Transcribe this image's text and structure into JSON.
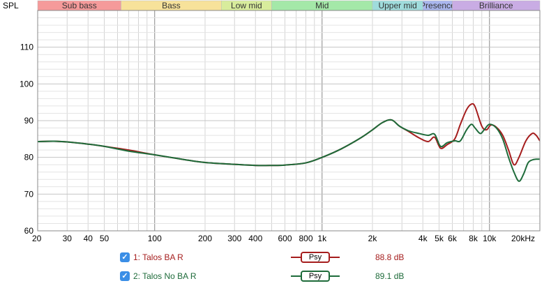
{
  "chart_data": {
    "type": "line",
    "ylabel": "SPL",
    "xscale": "log",
    "xlim": [
      20,
      20000
    ],
    "ylim": [
      60,
      120
    ],
    "yticks": [
      60,
      70,
      80,
      90,
      100,
      110
    ],
    "xtick_labels": [
      {
        "v": 20,
        "t": "20"
      },
      {
        "v": 30,
        "t": "30"
      },
      {
        "v": 40,
        "t": "40"
      },
      {
        "v": 50,
        "t": "50"
      },
      {
        "v": 100,
        "t": "100"
      },
      {
        "v": 200,
        "t": "200"
      },
      {
        "v": 300,
        "t": "300"
      },
      {
        "v": 400,
        "t": "400"
      },
      {
        "v": 600,
        "t": "600"
      },
      {
        "v": 800,
        "t": "800"
      },
      {
        "v": 1000,
        "t": "1k"
      },
      {
        "v": 2000,
        "t": "2k"
      },
      {
        "v": 4000,
        "t": "4k"
      },
      {
        "v": 5000,
        "t": "5k"
      },
      {
        "v": 6000,
        "t": "6k"
      },
      {
        "v": 8000,
        "t": "8k"
      },
      {
        "v": 10000,
        "t": "10k"
      },
      {
        "v": 20000,
        "t": "20kHz"
      }
    ],
    "bands": [
      {
        "label": "Sub bass",
        "from": 20,
        "to": 63,
        "color": "#f59a9a"
      },
      {
        "label": "Bass",
        "from": 63,
        "to": 250,
        "color": "#f7e29a"
      },
      {
        "label": "Low mid",
        "from": 250,
        "to": 500,
        "color": "#d8ec9c"
      },
      {
        "label": "Mid",
        "from": 500,
        "to": 2000,
        "color": "#a4e8a8"
      },
      {
        "label": "Upper mid",
        "from": 2000,
        "to": 4000,
        "color": "#9fdcdc"
      },
      {
        "label": "Presence",
        "from": 4000,
        "to": 6000,
        "color": "#a9b6ee"
      },
      {
        "label": "Brilliance",
        "from": 6000,
        "to": 20000,
        "color": "#c9ace4"
      }
    ],
    "series": [
      {
        "name": "1: Talos BA R",
        "color": "#a51d1d",
        "points": [
          [
            20,
            84.3
          ],
          [
            25,
            84.4
          ],
          [
            30,
            84.2
          ],
          [
            40,
            83.6
          ],
          [
            50,
            83
          ],
          [
            70,
            82
          ],
          [
            100,
            80.7
          ],
          [
            150,
            79.4
          ],
          [
            200,
            78.6
          ],
          [
            300,
            78.1
          ],
          [
            400,
            77.8
          ],
          [
            500,
            77.8
          ],
          [
            600,
            77.9
          ],
          [
            800,
            78.5
          ],
          [
            1000,
            80
          ],
          [
            1300,
            82.3
          ],
          [
            1700,
            85.3
          ],
          [
            2000,
            87.5
          ],
          [
            2300,
            89.5
          ],
          [
            2600,
            90.2
          ],
          [
            2900,
            88.5
          ],
          [
            3300,
            87
          ],
          [
            3800,
            85.3
          ],
          [
            4300,
            84.3
          ],
          [
            4700,
            85.5
          ],
          [
            5100,
            82.5
          ],
          [
            5600,
            83.5
          ],
          [
            6200,
            85
          ],
          [
            6700,
            89
          ],
          [
            7300,
            93
          ],
          [
            7800,
            94.5
          ],
          [
            8200,
            93.8
          ],
          [
            9000,
            88.5
          ],
          [
            9600,
            87.5
          ],
          [
            10200,
            88.8
          ],
          [
            11000,
            88.2
          ],
          [
            12000,
            86
          ],
          [
            13000,
            82
          ],
          [
            14000,
            78
          ],
          [
            15000,
            80
          ],
          [
            16500,
            84.5
          ],
          [
            18000,
            86.5
          ],
          [
            19000,
            86
          ],
          [
            20000,
            84.5
          ]
        ]
      },
      {
        "name": "2: Talos No BA R",
        "color": "#1e6b3a",
        "points": [
          [
            20,
            84.3
          ],
          [
            25,
            84.4
          ],
          [
            30,
            84.2
          ],
          [
            40,
            83.6
          ],
          [
            50,
            83
          ],
          [
            70,
            81.7
          ],
          [
            100,
            80.7
          ],
          [
            150,
            79.4
          ],
          [
            200,
            78.6
          ],
          [
            300,
            78.1
          ],
          [
            400,
            77.8
          ],
          [
            500,
            77.8
          ],
          [
            600,
            77.9
          ],
          [
            800,
            78.5
          ],
          [
            1000,
            80
          ],
          [
            1300,
            82.3
          ],
          [
            1700,
            85.3
          ],
          [
            2000,
            87.5
          ],
          [
            2300,
            89.5
          ],
          [
            2600,
            90.2
          ],
          [
            2900,
            88.5
          ],
          [
            3300,
            87.2
          ],
          [
            3800,
            86.5
          ],
          [
            4300,
            86
          ],
          [
            4700,
            86.3
          ],
          [
            5100,
            83
          ],
          [
            5600,
            84
          ],
          [
            6200,
            84.5
          ],
          [
            6700,
            84.5
          ],
          [
            7300,
            87.5
          ],
          [
            7800,
            89
          ],
          [
            8200,
            88
          ],
          [
            8800,
            86.5
          ],
          [
            9300,
            87.5
          ],
          [
            10000,
            89
          ],
          [
            11000,
            88
          ],
          [
            12000,
            85
          ],
          [
            13000,
            80
          ],
          [
            14000,
            76
          ],
          [
            15000,
            73.5
          ],
          [
            16000,
            75.5
          ],
          [
            17000,
            78.5
          ],
          [
            18000,
            79.3
          ],
          [
            19000,
            79.5
          ],
          [
            20000,
            79.5
          ]
        ]
      }
    ]
  },
  "legend": [
    {
      "label": "1: Talos BA R",
      "color": "#a51d1d",
      "button": "Psy",
      "value": "88.8 dB"
    },
    {
      "label": "2: Talos No BA R",
      "color": "#1e6b3a",
      "button": "Psy",
      "value": "89.1 dB"
    }
  ]
}
